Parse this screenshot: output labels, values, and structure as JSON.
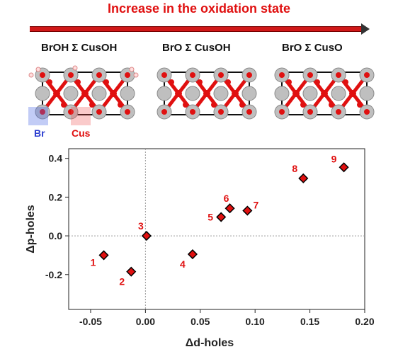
{
  "header": {
    "title": "Increase in the oxidation state"
  },
  "panels": [
    {
      "left": "BrOH",
      "sym": "Σ",
      "right": "CusOH"
    },
    {
      "left": "BrO",
      "sym": "Σ",
      "right": "CusOH"
    },
    {
      "left": "BrO",
      "sym": "Σ",
      "right": "CusO"
    }
  ],
  "site_labels": {
    "br": "Br",
    "cus": "Cus",
    "br_color": "#2a3ccf",
    "cus_color": "#e01010"
  },
  "colors": {
    "accent": "#e01010",
    "marker_fill": "#e01010",
    "marker_edge": "#000000",
    "oxygen": "#e01010",
    "metal": "#bfbfbf"
  },
  "chart_data": {
    "type": "scatter",
    "xlabel": "Δd-holes",
    "ylabel": "Δp-holes",
    "xlim": [
      -0.07,
      0.2
    ],
    "ylim": [
      -0.38,
      0.45
    ],
    "xticks": [
      -0.05,
      0.0,
      0.05,
      0.1,
      0.15,
      0.2
    ],
    "xtick_labels": [
      "-0.05",
      "0.00",
      "0.05",
      "0.10",
      "0.15",
      "0.20"
    ],
    "yticks": [
      -0.2,
      0.0,
      0.2,
      0.4
    ],
    "ytick_labels": [
      "-0.2",
      "0.0",
      "0.2",
      "0.4"
    ],
    "reference_lines": {
      "x": 0.0,
      "y": 0.0,
      "style": "dotted"
    },
    "marker": "diamond",
    "points": [
      {
        "label": "1",
        "x": -0.038,
        "y": -0.1
      },
      {
        "label": "2",
        "x": -0.013,
        "y": -0.185
      },
      {
        "label": "3",
        "x": 0.001,
        "y": 0.0
      },
      {
        "label": "4",
        "x": 0.043,
        "y": -0.095
      },
      {
        "label": "5",
        "x": 0.069,
        "y": 0.097
      },
      {
        "label": "6",
        "x": 0.077,
        "y": 0.142
      },
      {
        "label": "7",
        "x": 0.093,
        "y": 0.13
      },
      {
        "label": "8",
        "x": 0.144,
        "y": 0.297
      },
      {
        "label": "9",
        "x": 0.181,
        "y": 0.354
      }
    ]
  }
}
